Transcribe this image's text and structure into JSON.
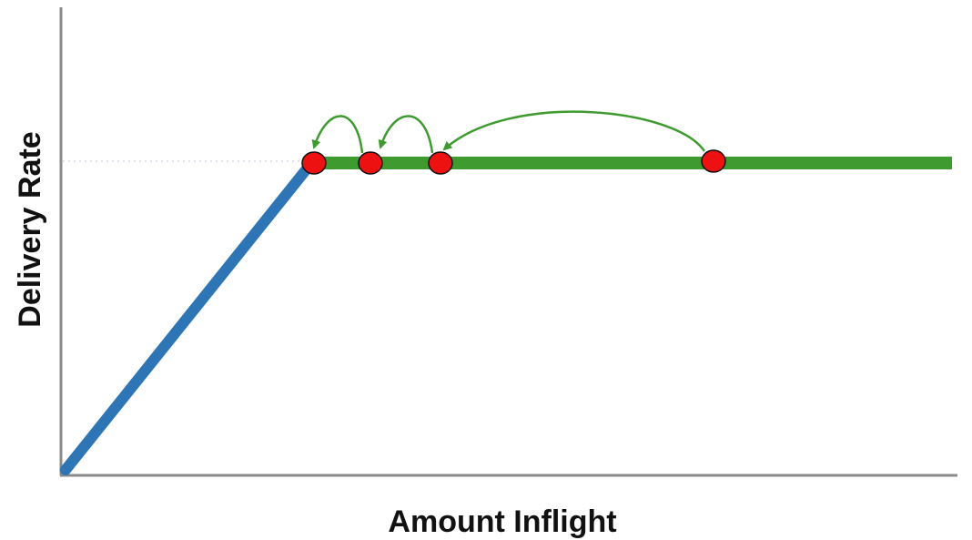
{
  "labels": {
    "y_axis": "Delivery Rate",
    "x_axis": "Amount Inflight"
  },
  "colors": {
    "axis": "#8a8a8a",
    "ramp_line": "#2e75b6",
    "plateau_line": "#3f9a2f",
    "point_fill": "#ee1111",
    "point_stroke": "#111111",
    "arrow": "#3f9a2f",
    "dotted_guide": "#c9c0d8"
  },
  "icons": {
    "points": "red-circle-marker",
    "arrows": "curved-arrow"
  }
}
